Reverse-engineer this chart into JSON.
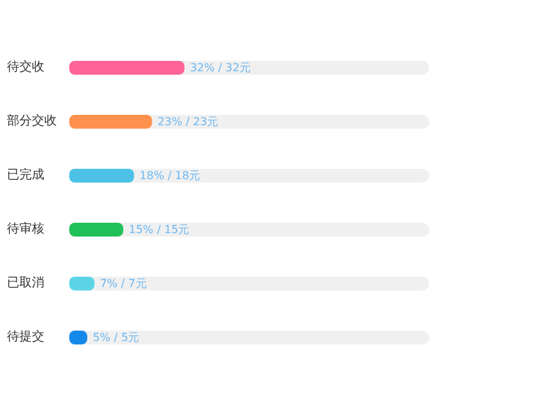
{
  "chart_data": {
    "type": "bar",
    "orientation": "horizontal",
    "categories": [
      "待交收",
      "部分交收",
      "已完成",
      "待审核",
      "已取消",
      "待提交"
    ],
    "values": [
      32,
      23,
      18,
      15,
      7,
      5
    ],
    "colors": [
      "#ff6499",
      "#ff914d",
      "#4dc2e6",
      "#22c05a",
      "#5bd5e6",
      "#1589ea"
    ],
    "value_labels": [
      "32% / 32元",
      "23% / 23元",
      "18% / 18元",
      "15% / 15元",
      "7% / 7元",
      "5% / 5元"
    ],
    "xlim": [
      0,
      100
    ],
    "tick_labels": "y",
    "grid": false
  }
}
